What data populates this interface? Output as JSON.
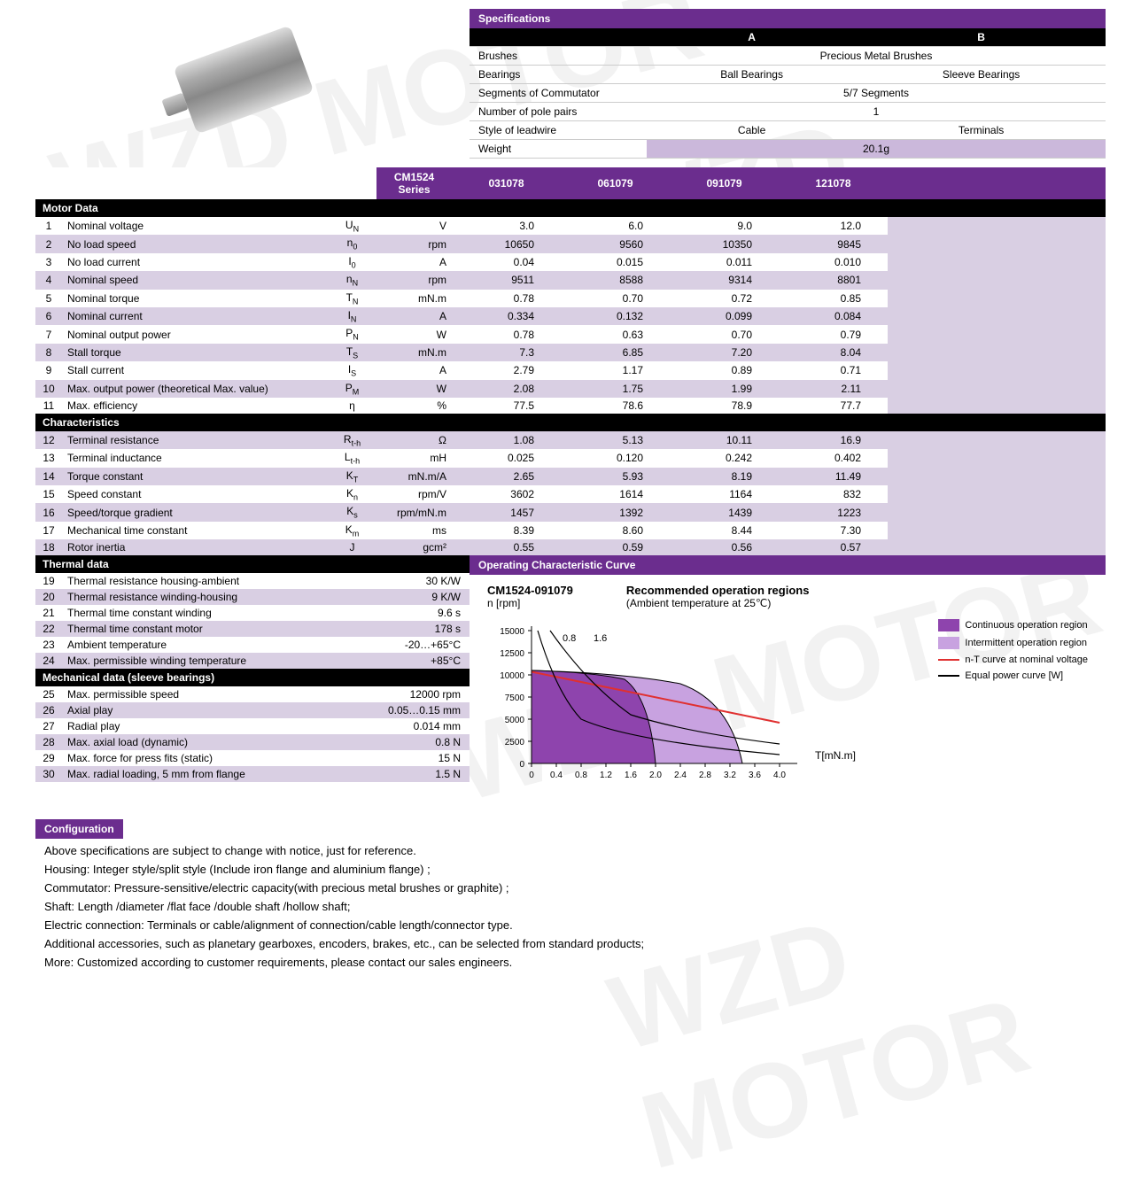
{
  "watermark_text": "WZD MOTOR",
  "specifications": {
    "header": "Specifications",
    "col_a": "A",
    "col_b": "B",
    "rows": [
      {
        "label": "Brushes",
        "a": "Precious Metal Brushes",
        "span": true
      },
      {
        "label": "Bearings",
        "a": "Ball Bearings",
        "b": "Sleeve Bearings"
      },
      {
        "label": "Segments of Commutator",
        "a": "5/7 Segments",
        "span": true
      },
      {
        "label": "Number of pole pairs",
        "a": "1",
        "span": true
      },
      {
        "label": "Style of leadwire",
        "a": "Cable",
        "b": "Terminals"
      },
      {
        "label": "Weight",
        "a": "20.1g",
        "span": true,
        "hilite": true
      }
    ]
  },
  "series_label": "CM1524 Series",
  "model_headers": [
    "031078",
    "061079",
    "091079",
    "121078",
    "",
    ""
  ],
  "sections": [
    {
      "title": "Motor Data",
      "rows": [
        {
          "n": "1",
          "p": "Nominal voltage",
          "s": "U",
          "sub": "N",
          "u": "V",
          "v": [
            "3.0",
            "6.0",
            "9.0",
            "12.0"
          ]
        },
        {
          "n": "2",
          "p": "No load speed",
          "s": "n",
          "sub": "0",
          "u": "rpm",
          "v": [
            "10650",
            "9560",
            "10350",
            "9845"
          ]
        },
        {
          "n": "3",
          "p": "No load current",
          "s": "I",
          "sub": "0",
          "u": "A",
          "v": [
            "0.04",
            "0.015",
            "0.011",
            "0.010"
          ]
        },
        {
          "n": "4",
          "p": "Nominal speed",
          "s": "n",
          "sub": "N",
          "u": "rpm",
          "v": [
            "9511",
            "8588",
            "9314",
            "8801"
          ]
        },
        {
          "n": "5",
          "p": "Nominal torque",
          "s": "T",
          "sub": "N",
          "u": "mN.m",
          "v": [
            "0.78",
            "0.70",
            "0.72",
            "0.85"
          ]
        },
        {
          "n": "6",
          "p": "Nominal current",
          "s": "I",
          "sub": "N",
          "u": "A",
          "v": [
            "0.334",
            "0.132",
            "0.099",
            "0.084"
          ]
        },
        {
          "n": "7",
          "p": "Nominal output power",
          "s": "P",
          "sub": "N",
          "u": "W",
          "v": [
            "0.78",
            "0.63",
            "0.70",
            "0.79"
          ]
        },
        {
          "n": "8",
          "p": "Stall torque",
          "s": "T",
          "sub": "S",
          "u": "mN.m",
          "v": [
            "7.3",
            "6.85",
            "7.20",
            "8.04"
          ]
        },
        {
          "n": "9",
          "p": "Stall current",
          "s": "I",
          "sub": "S",
          "u": "A",
          "v": [
            "2.79",
            "1.17",
            "0.89",
            "0.71"
          ]
        },
        {
          "n": "10",
          "p": "Max. output power (theoretical Max. value)",
          "s": "P",
          "sub": "M",
          "u": "W",
          "v": [
            "2.08",
            "1.75",
            "1.99",
            "2.11"
          ]
        },
        {
          "n": "11",
          "p": "Max. efficiency",
          "s": "η",
          "sub": "",
          "u": "%",
          "v": [
            "77.5",
            "78.6",
            "78.9",
            "77.7"
          ]
        }
      ]
    },
    {
      "title": "Characteristics",
      "rows": [
        {
          "n": "12",
          "p": "Terminal resistance",
          "s": "R",
          "sub": "t-h",
          "u": "Ω",
          "v": [
            "1.08",
            "5.13",
            "10.11",
            "16.9"
          ]
        },
        {
          "n": "13",
          "p": "Terminal inductance",
          "s": "L",
          "sub": "t-h",
          "u": "mH",
          "v": [
            "0.025",
            "0.120",
            "0.242",
            "0.402"
          ]
        },
        {
          "n": "14",
          "p": "Torque constant",
          "s": "K",
          "sub": "T",
          "u": "mN.m/A",
          "v": [
            "2.65",
            "5.93",
            "8.19",
            "11.49"
          ]
        },
        {
          "n": "15",
          "p": "Speed constant",
          "s": "K",
          "sub": "n",
          "u": "rpm/V",
          "v": [
            "3602",
            "1614",
            "1164",
            "832"
          ]
        },
        {
          "n": "16",
          "p": "Speed/torque gradient",
          "s": "K",
          "sub": "s",
          "u": "rpm/mN.m",
          "v": [
            "1457",
            "1392",
            "1439",
            "1223"
          ]
        },
        {
          "n": "17",
          "p": "Mechanical time constant",
          "s": "K",
          "sub": "m",
          "u": "ms",
          "v": [
            "8.39",
            "8.60",
            "8.44",
            "7.30"
          ]
        },
        {
          "n": "18",
          "p": "Rotor inertia",
          "s": "J",
          "sub": "",
          "u": "gcm²",
          "v": [
            "0.55",
            "0.59",
            "0.56",
            "0.57"
          ]
        }
      ]
    }
  ],
  "thermal": {
    "title": "Thermal data",
    "rows": [
      {
        "n": "19",
        "p": "Thermal resistance housing-ambient",
        "v": "30 K/W"
      },
      {
        "n": "20",
        "p": "Thermal resistance winding-housing",
        "v": "9 K/W"
      },
      {
        "n": "21",
        "p": "Thermal time constant winding",
        "v": "9.6 s"
      },
      {
        "n": "22",
        "p": "Thermal time constant motor",
        "v": "178 s"
      },
      {
        "n": "23",
        "p": "Ambient temperature",
        "v": "-20…+65°C"
      },
      {
        "n": "24",
        "p": "Max. permissible winding temperature",
        "v": "+85°C"
      }
    ]
  },
  "mechanical": {
    "title": "Mechanical data (sleeve bearings)",
    "rows": [
      {
        "n": "25",
        "p": "Max. permissible speed",
        "v": "12000 rpm"
      },
      {
        "n": "26",
        "p": "Axial play",
        "v": "0.05…0.15 mm"
      },
      {
        "n": "27",
        "p": "Radial play",
        "v": "0.014  mm"
      },
      {
        "n": "28",
        "p": "Max. axial load (dynamic)",
        "v": "0.8 N"
      },
      {
        "n": "29",
        "p": "Max. force for press fits (static)",
        "v": "15 N"
      },
      {
        "n": "30",
        "p": "Max. radial loading, 5 mm from flange",
        "v": "1.5 N"
      }
    ]
  },
  "curve": {
    "header": "Operating Characteristic Curve",
    "chart_title": "CM1524-091079",
    "y_label": "n [rpm]",
    "rec_label": "Recommended operation regions",
    "rec_sub": "(Ambient temperature at 25℃)",
    "x_label": "T[mN.m]",
    "power_labels": [
      "0.8",
      "1.6"
    ],
    "y_ticks": [
      "15000",
      "12500",
      "10000",
      "7500",
      "5000",
      "2500",
      "0"
    ],
    "x_ticks": [
      "0",
      "0.4",
      "0.8",
      "1.2",
      "1.6",
      "2.0",
      "2.4",
      "2.8",
      "3.2",
      "3.6",
      "4.0"
    ],
    "ylim": [
      0,
      15000
    ],
    "xlim": [
      0,
      4.0
    ],
    "legend": [
      {
        "label": "Continuous operation region",
        "color": "#8e44ad",
        "type": "box"
      },
      {
        "label": "Intermittent operation region",
        "color": "#c8a2e0",
        "type": "box"
      },
      {
        "label": "n-T curve at nominal voltage",
        "color": "#e03030",
        "type": "line"
      },
      {
        "label": "Equal power curve [W]",
        "color": "#000",
        "type": "line"
      }
    ],
    "colors": {
      "continuous": "#8e44ad",
      "intermittent": "#c8a2e0",
      "nt_line": "#e03030",
      "power_line": "#000",
      "axis": "#000",
      "bg": "#ffffff"
    }
  },
  "config": {
    "header": "Configuration",
    "lines": [
      "Above specifications are subject to change with notice, just for reference.",
      "Housing: Integer style/split style (Include iron flange and aluminium flange) ;",
      "Commutator: Pressure-sensitive/electric capacity(with precious metal brushes or graphite) ;",
      "Shaft: Length /diameter /flat face /double shaft /hollow shaft;",
      "Electric connection: Terminals or cable/alignment of connection/cable length/connector type.",
      "Additional accessories, such as planetary gearboxes, encoders, brakes, etc., can be selected from standard products;",
      "More: Customized according to customer requirements, please contact our sales engineers."
    ]
  }
}
